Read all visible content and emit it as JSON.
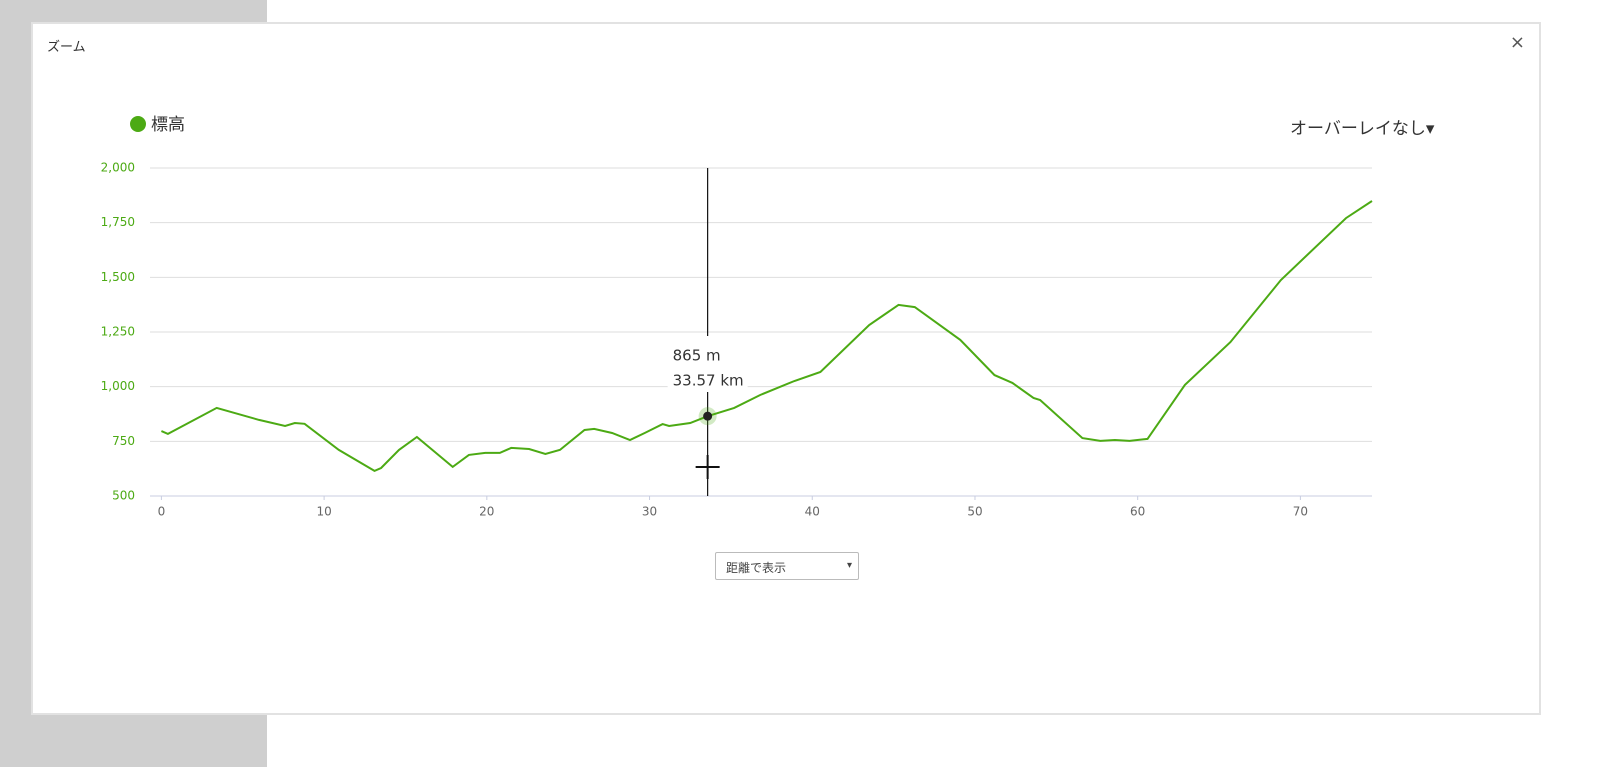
{
  "modal": {
    "title": "ズーム",
    "close": "×",
    "overlay_select": "オーバーレイなし▾",
    "mode_select": "距離で表示"
  },
  "tooltip": {
    "value": "865 m",
    "distance": "33.57 km"
  },
  "chart_data": {
    "type": "line",
    "x": [
      0,
      0.4,
      3.4,
      6.0,
      7.6,
      8.2,
      8.8,
      10.9,
      13.1,
      13.5,
      14.6,
      15.7,
      17.9,
      18.9,
      19.9,
      20.8,
      21.5,
      22.6,
      23.6,
      24.5,
      26.0,
      26.6,
      27.7,
      28.8,
      29.7,
      30.8,
      31.2,
      32.5,
      33.57,
      35.2,
      36.8,
      38.9,
      40.5,
      43.5,
      45.3,
      46.3,
      49.1,
      51.2,
      52.3,
      53.6,
      54.0,
      56.6,
      57.7,
      58.6,
      59.5,
      60.6,
      62.9,
      65.7,
      68.8,
      72.8,
      74.4
    ],
    "series": [
      {
        "name": "標高",
        "color": "#4caa14",
        "values": [
          797,
          784,
          903,
          848,
          820,
          834,
          830,
          711,
          615,
          628,
          711,
          770,
          633,
          688,
          697,
          697,
          720,
          715,
          692,
          711,
          802,
          807,
          788,
          756,
          788,
          829,
          820,
          834,
          865,
          903,
          962,
          1026,
          1067,
          1282,
          1374,
          1364,
          1214,
          1053,
          1017,
          948,
          939,
          765,
          752,
          756,
          752,
          761,
          1008,
          1204,
          1488,
          1771,
          1849
        ]
      }
    ],
    "xlim": [
      -0.7,
      74.4
    ],
    "xticks": [
      0,
      10,
      20,
      30,
      40,
      50,
      60,
      70
    ],
    "ylim": [
      500,
      2000
    ],
    "yticks": [
      500,
      750,
      {
        "value": 1000,
        "label": "1,000"
      },
      {
        "value": 1250,
        "label": "1,250"
      },
      {
        "value": 1500,
        "label": "1,500"
      },
      {
        "value": 1750,
        "label": "1,750"
      },
      {
        "value": 2000,
        "label": "2,000"
      }
    ],
    "grid": true,
    "highlight_index": 28
  }
}
